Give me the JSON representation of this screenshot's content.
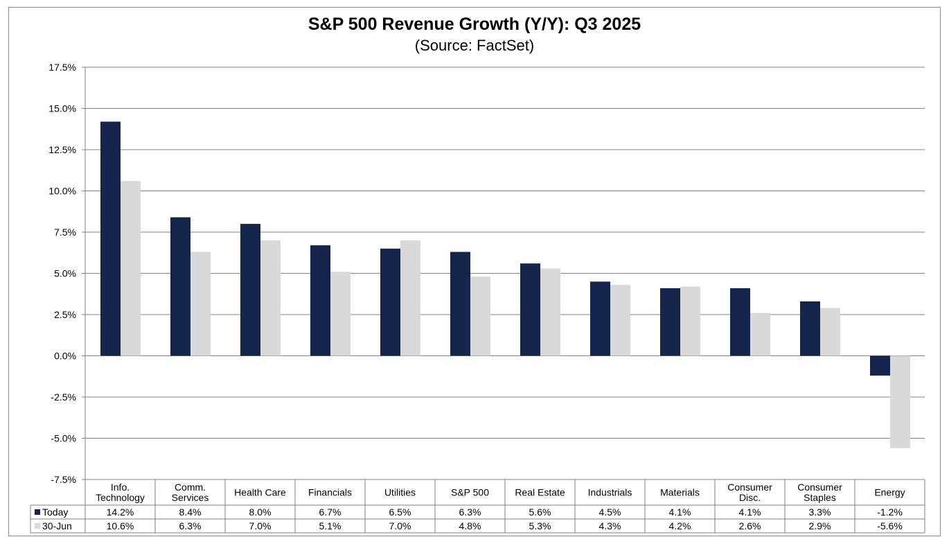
{
  "chart_data": {
    "type": "bar",
    "title": "S&P 500 Revenue Growth (Y/Y):  Q3 2025",
    "subtitle": "(Source: FactSet)",
    "categories": [
      [
        "Info.",
        "Technology"
      ],
      [
        "Comm.",
        "Services"
      ],
      [
        "Health Care"
      ],
      [
        "Financials"
      ],
      [
        "Utilities"
      ],
      [
        "S&P 500"
      ],
      [
        "Real Estate"
      ],
      [
        "Industrials"
      ],
      [
        "Materials"
      ],
      [
        "Consumer",
        "Disc."
      ],
      [
        "Consumer",
        "Staples"
      ],
      [
        "Energy"
      ]
    ],
    "series": [
      {
        "name": "Today",
        "color": "#15254b",
        "values": [
          14.2,
          8.4,
          8.0,
          6.7,
          6.5,
          6.3,
          5.6,
          4.5,
          4.1,
          4.1,
          3.3,
          -1.2
        ],
        "labels": [
          "14.2%",
          "8.4%",
          "8.0%",
          "6.7%",
          "6.5%",
          "6.3%",
          "5.6%",
          "4.5%",
          "4.1%",
          "4.1%",
          "3.3%",
          "-1.2%"
        ]
      },
      {
        "name": "30-Jun",
        "color": "#d9d9d9",
        "values": [
          10.6,
          6.3,
          7.0,
          5.1,
          7.0,
          4.8,
          5.3,
          4.3,
          4.2,
          2.6,
          2.9,
          -5.6
        ],
        "labels": [
          "10.6%",
          "6.3%",
          "7.0%",
          "5.1%",
          "7.0%",
          "4.8%",
          "5.3%",
          "4.3%",
          "4.2%",
          "2.6%",
          "2.9%",
          "-5.6%"
        ]
      }
    ],
    "ylim": [
      -7.5,
      17.5
    ],
    "yticks": [
      17.5,
      15.0,
      12.5,
      10.0,
      7.5,
      5.0,
      2.5,
      0.0,
      -2.5,
      -5.0,
      -7.5
    ],
    "ytick_labels": [
      "17.5%",
      "15.0%",
      "12.5%",
      "10.0%",
      "7.5%",
      "5.0%",
      "2.5%",
      "0.0%",
      "-2.5%",
      "-5.0%",
      "-7.5%"
    ],
    "grid": true,
    "legend": "data-table",
    "gridline_color": "#808080",
    "text_color": "#000000"
  }
}
